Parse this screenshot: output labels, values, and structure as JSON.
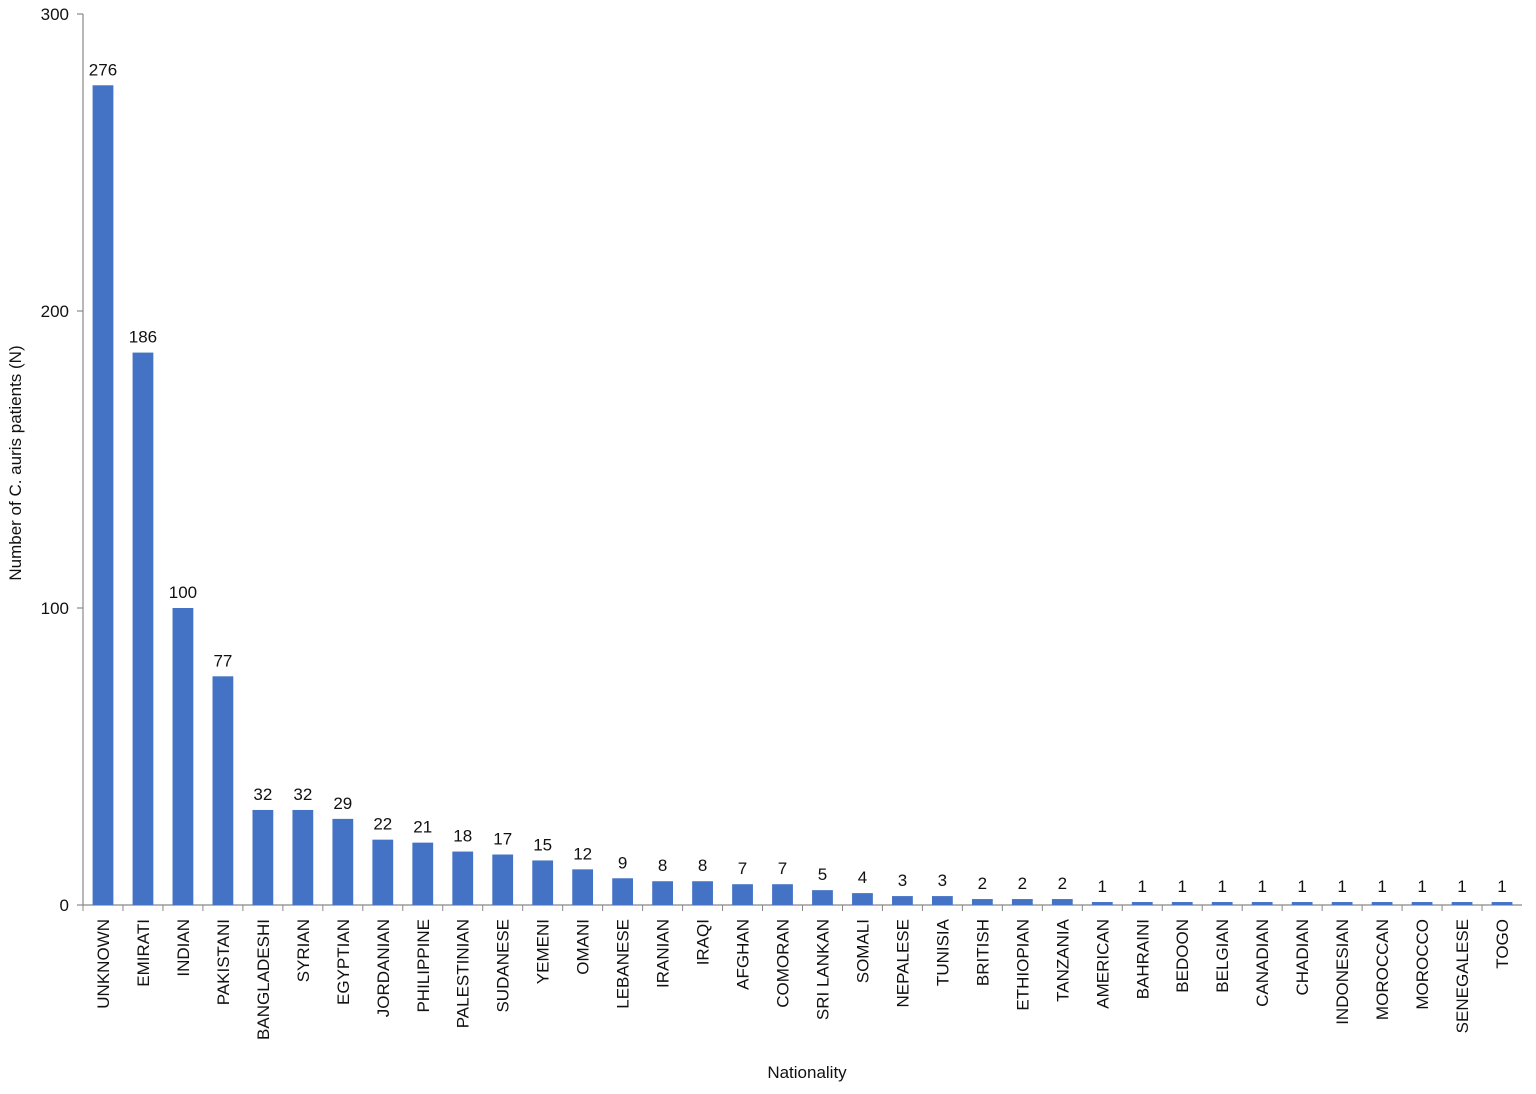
{
  "chart_data": {
    "type": "bar",
    "title": "",
    "xlabel": "Nationality",
    "ylabel": "Number of C. auris patients (N)",
    "ylim": [
      0,
      300
    ],
    "yticks": [
      0,
      100,
      200,
      300
    ],
    "grid": false,
    "legend": "none",
    "bar_color": "#4472c4",
    "categories": [
      "UNKNOWN",
      "EMIRATI",
      "INDIAN",
      "PAKISTANI",
      "BANGLADESHI",
      "SYRIAN",
      "EGYPTIAN",
      "JORDANIAN",
      "PHILIPPINE",
      "PALESTINIAN",
      "SUDANESE",
      "YEMENI",
      "OMANI",
      "LEBANESE",
      "IRANIAN",
      "IRAQI",
      "AFGHAN",
      "COMORAN",
      "SRI LANKAN",
      "SOMALI",
      "NEPALESE",
      "TUNISIA",
      "BRITISH",
      "ETHIOPIAN",
      "TANZANIA",
      "AMERICAN",
      "BAHRAINI",
      "BEDOON",
      "BELGIAN",
      "CANADIAN",
      "CHADIAN",
      "INDONESIAN",
      "MOROCCAN",
      "MOROCCO",
      "SENEGALESE",
      "TOGO"
    ],
    "values": [
      276,
      186,
      100,
      77,
      32,
      32,
      29,
      22,
      21,
      18,
      17,
      15,
      12,
      9,
      8,
      8,
      7,
      7,
      5,
      4,
      3,
      3,
      2,
      2,
      2,
      1,
      1,
      1,
      1,
      1,
      1,
      1,
      1,
      1,
      1,
      1
    ]
  }
}
